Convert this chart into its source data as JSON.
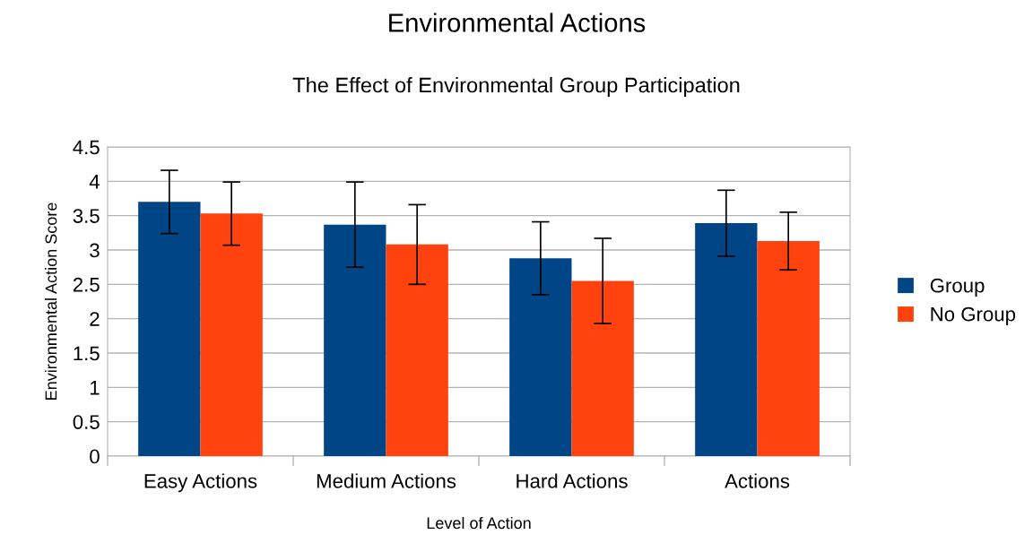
{
  "chart_data": {
    "type": "bar",
    "title": "Environmental Actions",
    "subtitle": "The Effect of Environmental Group Participation",
    "xlabel": "Level of Action",
    "ylabel": "Environmental Action Score",
    "categories": [
      "Easy Actions",
      "Medium Actions",
      "Hard Actions",
      "Actions"
    ],
    "series": [
      {
        "name": "Group",
        "color": "#004586",
        "values": [
          3.7,
          3.37,
          2.88,
          3.39
        ],
        "errors": [
          0.46,
          0.62,
          0.53,
          0.48
        ]
      },
      {
        "name": "No Group",
        "color": "#ff420e",
        "values": [
          3.53,
          3.08,
          2.55,
          3.13
        ],
        "errors": [
          0.46,
          0.58,
          0.62,
          0.42
        ]
      }
    ],
    "ylim": [
      0,
      4.5
    ],
    "yticks": [
      0,
      0.5,
      1,
      1.5,
      2,
      2.5,
      3,
      3.5,
      4,
      4.5
    ],
    "grid": "y",
    "legend": "right"
  }
}
